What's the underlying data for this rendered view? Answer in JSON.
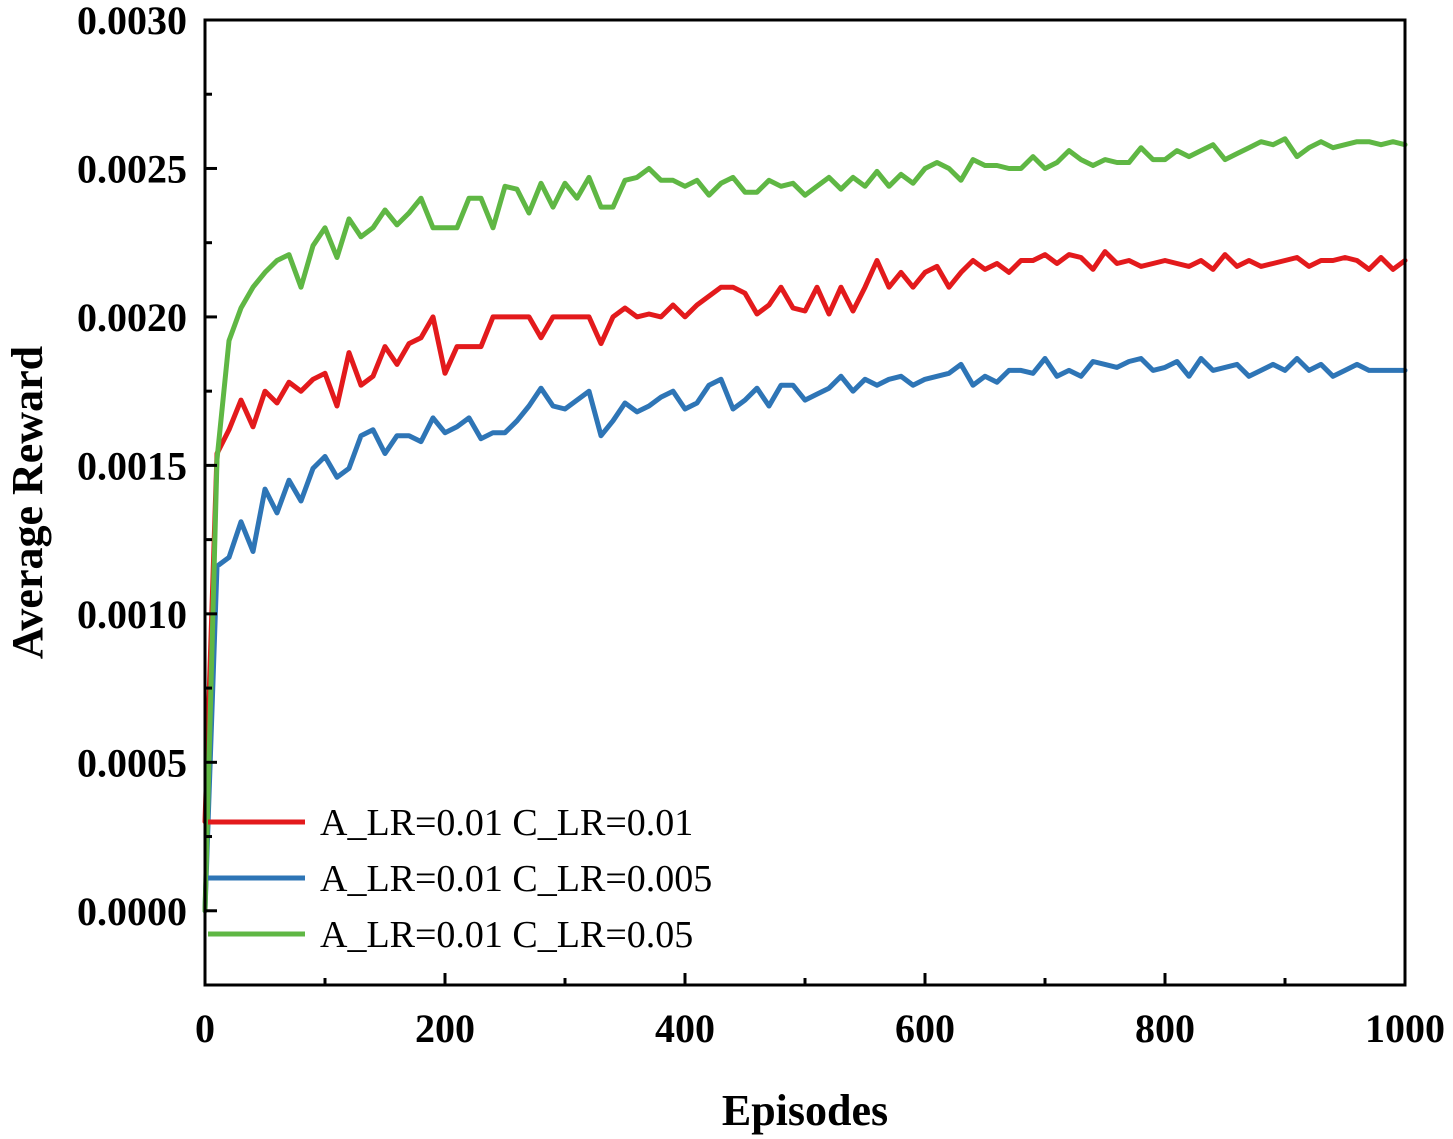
{
  "chart_data": {
    "type": "line",
    "title": "",
    "xlabel": "Episodes",
    "ylabel": "Average Reward",
    "xlim": [
      0,
      1000
    ],
    "ylim": [
      -0.00025,
      0.003
    ],
    "xticks": [
      0,
      200,
      400,
      600,
      800,
      1000
    ],
    "xtick_labels": [
      "0",
      "200",
      "400",
      "600",
      "800",
      "1000"
    ],
    "yticks": [
      0,
      0.0005,
      0.001,
      0.0015,
      0.002,
      0.0025,
      0.003
    ],
    "ytick_labels": [
      "0.0000",
      "0.0005",
      "0.0010",
      "0.0015",
      "0.0020",
      "0.0025",
      "0.0030"
    ],
    "grid": false,
    "legend_position": "bottom-left",
    "x": [
      0,
      10,
      20,
      30,
      40,
      50,
      60,
      70,
      80,
      90,
      100,
      110,
      120,
      130,
      140,
      150,
      160,
      170,
      180,
      190,
      200,
      210,
      220,
      230,
      240,
      250,
      260,
      270,
      280,
      290,
      300,
      310,
      320,
      330,
      340,
      350,
      360,
      370,
      380,
      390,
      400,
      410,
      420,
      430,
      440,
      450,
      460,
      470,
      480,
      490,
      500,
      510,
      520,
      530,
      540,
      550,
      560,
      570,
      580,
      590,
      600,
      610,
      620,
      630,
      640,
      650,
      660,
      670,
      680,
      690,
      700,
      710,
      720,
      730,
      740,
      750,
      760,
      770,
      780,
      790,
      800,
      810,
      820,
      830,
      840,
      850,
      860,
      870,
      880,
      890,
      900,
      910,
      920,
      930,
      940,
      950,
      960,
      970,
      980,
      990,
      1000
    ],
    "series": [
      {
        "name": "A_LR=0.01  C_LR=0.01",
        "color": "#e31a1c",
        "values": [
          0.0003,
          0.00154,
          0.00162,
          0.00172,
          0.00163,
          0.00175,
          0.00171,
          0.00178,
          0.00175,
          0.00179,
          0.00181,
          0.0017,
          0.00188,
          0.00177,
          0.0018,
          0.0019,
          0.00184,
          0.00191,
          0.00193,
          0.002,
          0.00181,
          0.0019,
          0.0019,
          0.0019,
          0.002,
          0.002,
          0.002,
          0.002,
          0.00193,
          0.002,
          0.002,
          0.002,
          0.002,
          0.00191,
          0.002,
          0.00203,
          0.002,
          0.00201,
          0.002,
          0.00204,
          0.002,
          0.00204,
          0.00207,
          0.0021,
          0.0021,
          0.00208,
          0.00201,
          0.00204,
          0.0021,
          0.00203,
          0.00202,
          0.0021,
          0.00201,
          0.0021,
          0.00202,
          0.0021,
          0.00219,
          0.0021,
          0.00215,
          0.0021,
          0.00215,
          0.00217,
          0.0021,
          0.00215,
          0.00219,
          0.00216,
          0.00218,
          0.00215,
          0.00219,
          0.00219,
          0.00221,
          0.00218,
          0.00221,
          0.0022,
          0.00216,
          0.00222,
          0.00218,
          0.00219,
          0.00217,
          0.00218,
          0.00219,
          0.00218,
          0.00217,
          0.00219,
          0.00216,
          0.00221,
          0.00217,
          0.00219,
          0.00217,
          0.00218,
          0.00219,
          0.0022,
          0.00217,
          0.00219,
          0.00219,
          0.0022,
          0.00219,
          0.00216,
          0.0022,
          0.00216,
          0.00219
        ]
      },
      {
        "name": "A_LR=0.01  C_LR=0.005",
        "color": "#2e75b6",
        "values": [
          0.0,
          0.00116,
          0.00119,
          0.00131,
          0.00121,
          0.00142,
          0.00134,
          0.00145,
          0.00138,
          0.00149,
          0.00153,
          0.00146,
          0.00149,
          0.0016,
          0.00162,
          0.00154,
          0.0016,
          0.0016,
          0.00158,
          0.00166,
          0.00161,
          0.00163,
          0.00166,
          0.00159,
          0.00161,
          0.00161,
          0.00165,
          0.0017,
          0.00176,
          0.0017,
          0.00169,
          0.00172,
          0.00175,
          0.0016,
          0.00165,
          0.00171,
          0.00168,
          0.0017,
          0.00173,
          0.00175,
          0.00169,
          0.00171,
          0.00177,
          0.00179,
          0.00169,
          0.00172,
          0.00176,
          0.0017,
          0.00177,
          0.00177,
          0.00172,
          0.00174,
          0.00176,
          0.0018,
          0.00175,
          0.00179,
          0.00177,
          0.00179,
          0.0018,
          0.00177,
          0.00179,
          0.0018,
          0.00181,
          0.00184,
          0.00177,
          0.0018,
          0.00178,
          0.00182,
          0.00182,
          0.00181,
          0.00186,
          0.0018,
          0.00182,
          0.0018,
          0.00185,
          0.00184,
          0.00183,
          0.00185,
          0.00186,
          0.00182,
          0.00183,
          0.00185,
          0.0018,
          0.00186,
          0.00182,
          0.00183,
          0.00184,
          0.0018,
          0.00182,
          0.00184,
          0.00182,
          0.00186,
          0.00182,
          0.00184,
          0.0018,
          0.00182,
          0.00184,
          0.00182,
          0.00182,
          0.00182,
          0.00182
        ]
      },
      {
        "name": "A_LR=0.01  C_LR=0.05",
        "color": "#5fb744",
        "values": [
          0.0,
          0.00152,
          0.00192,
          0.00203,
          0.0021,
          0.00215,
          0.00219,
          0.00221,
          0.0021,
          0.00224,
          0.0023,
          0.0022,
          0.00233,
          0.00227,
          0.0023,
          0.00236,
          0.00231,
          0.00235,
          0.0024,
          0.0023,
          0.0023,
          0.0023,
          0.0024,
          0.0024,
          0.0023,
          0.00244,
          0.00243,
          0.00235,
          0.00245,
          0.00237,
          0.00245,
          0.0024,
          0.00247,
          0.00237,
          0.00237,
          0.00246,
          0.00247,
          0.0025,
          0.00246,
          0.00246,
          0.00244,
          0.00246,
          0.00241,
          0.00245,
          0.00247,
          0.00242,
          0.00242,
          0.00246,
          0.00244,
          0.00245,
          0.00241,
          0.00244,
          0.00247,
          0.00243,
          0.00247,
          0.00244,
          0.00249,
          0.00244,
          0.00248,
          0.00245,
          0.0025,
          0.00252,
          0.0025,
          0.00246,
          0.00253,
          0.00251,
          0.00251,
          0.0025,
          0.0025,
          0.00254,
          0.0025,
          0.00252,
          0.00256,
          0.00253,
          0.00251,
          0.00253,
          0.00252,
          0.00252,
          0.00257,
          0.00253,
          0.00253,
          0.00256,
          0.00254,
          0.00256,
          0.00258,
          0.00253,
          0.00255,
          0.00257,
          0.00259,
          0.00258,
          0.0026,
          0.00254,
          0.00257,
          0.00259,
          0.00257,
          0.00258,
          0.00259,
          0.00259,
          0.00258,
          0.00259,
          0.00258
        ]
      }
    ]
  }
}
